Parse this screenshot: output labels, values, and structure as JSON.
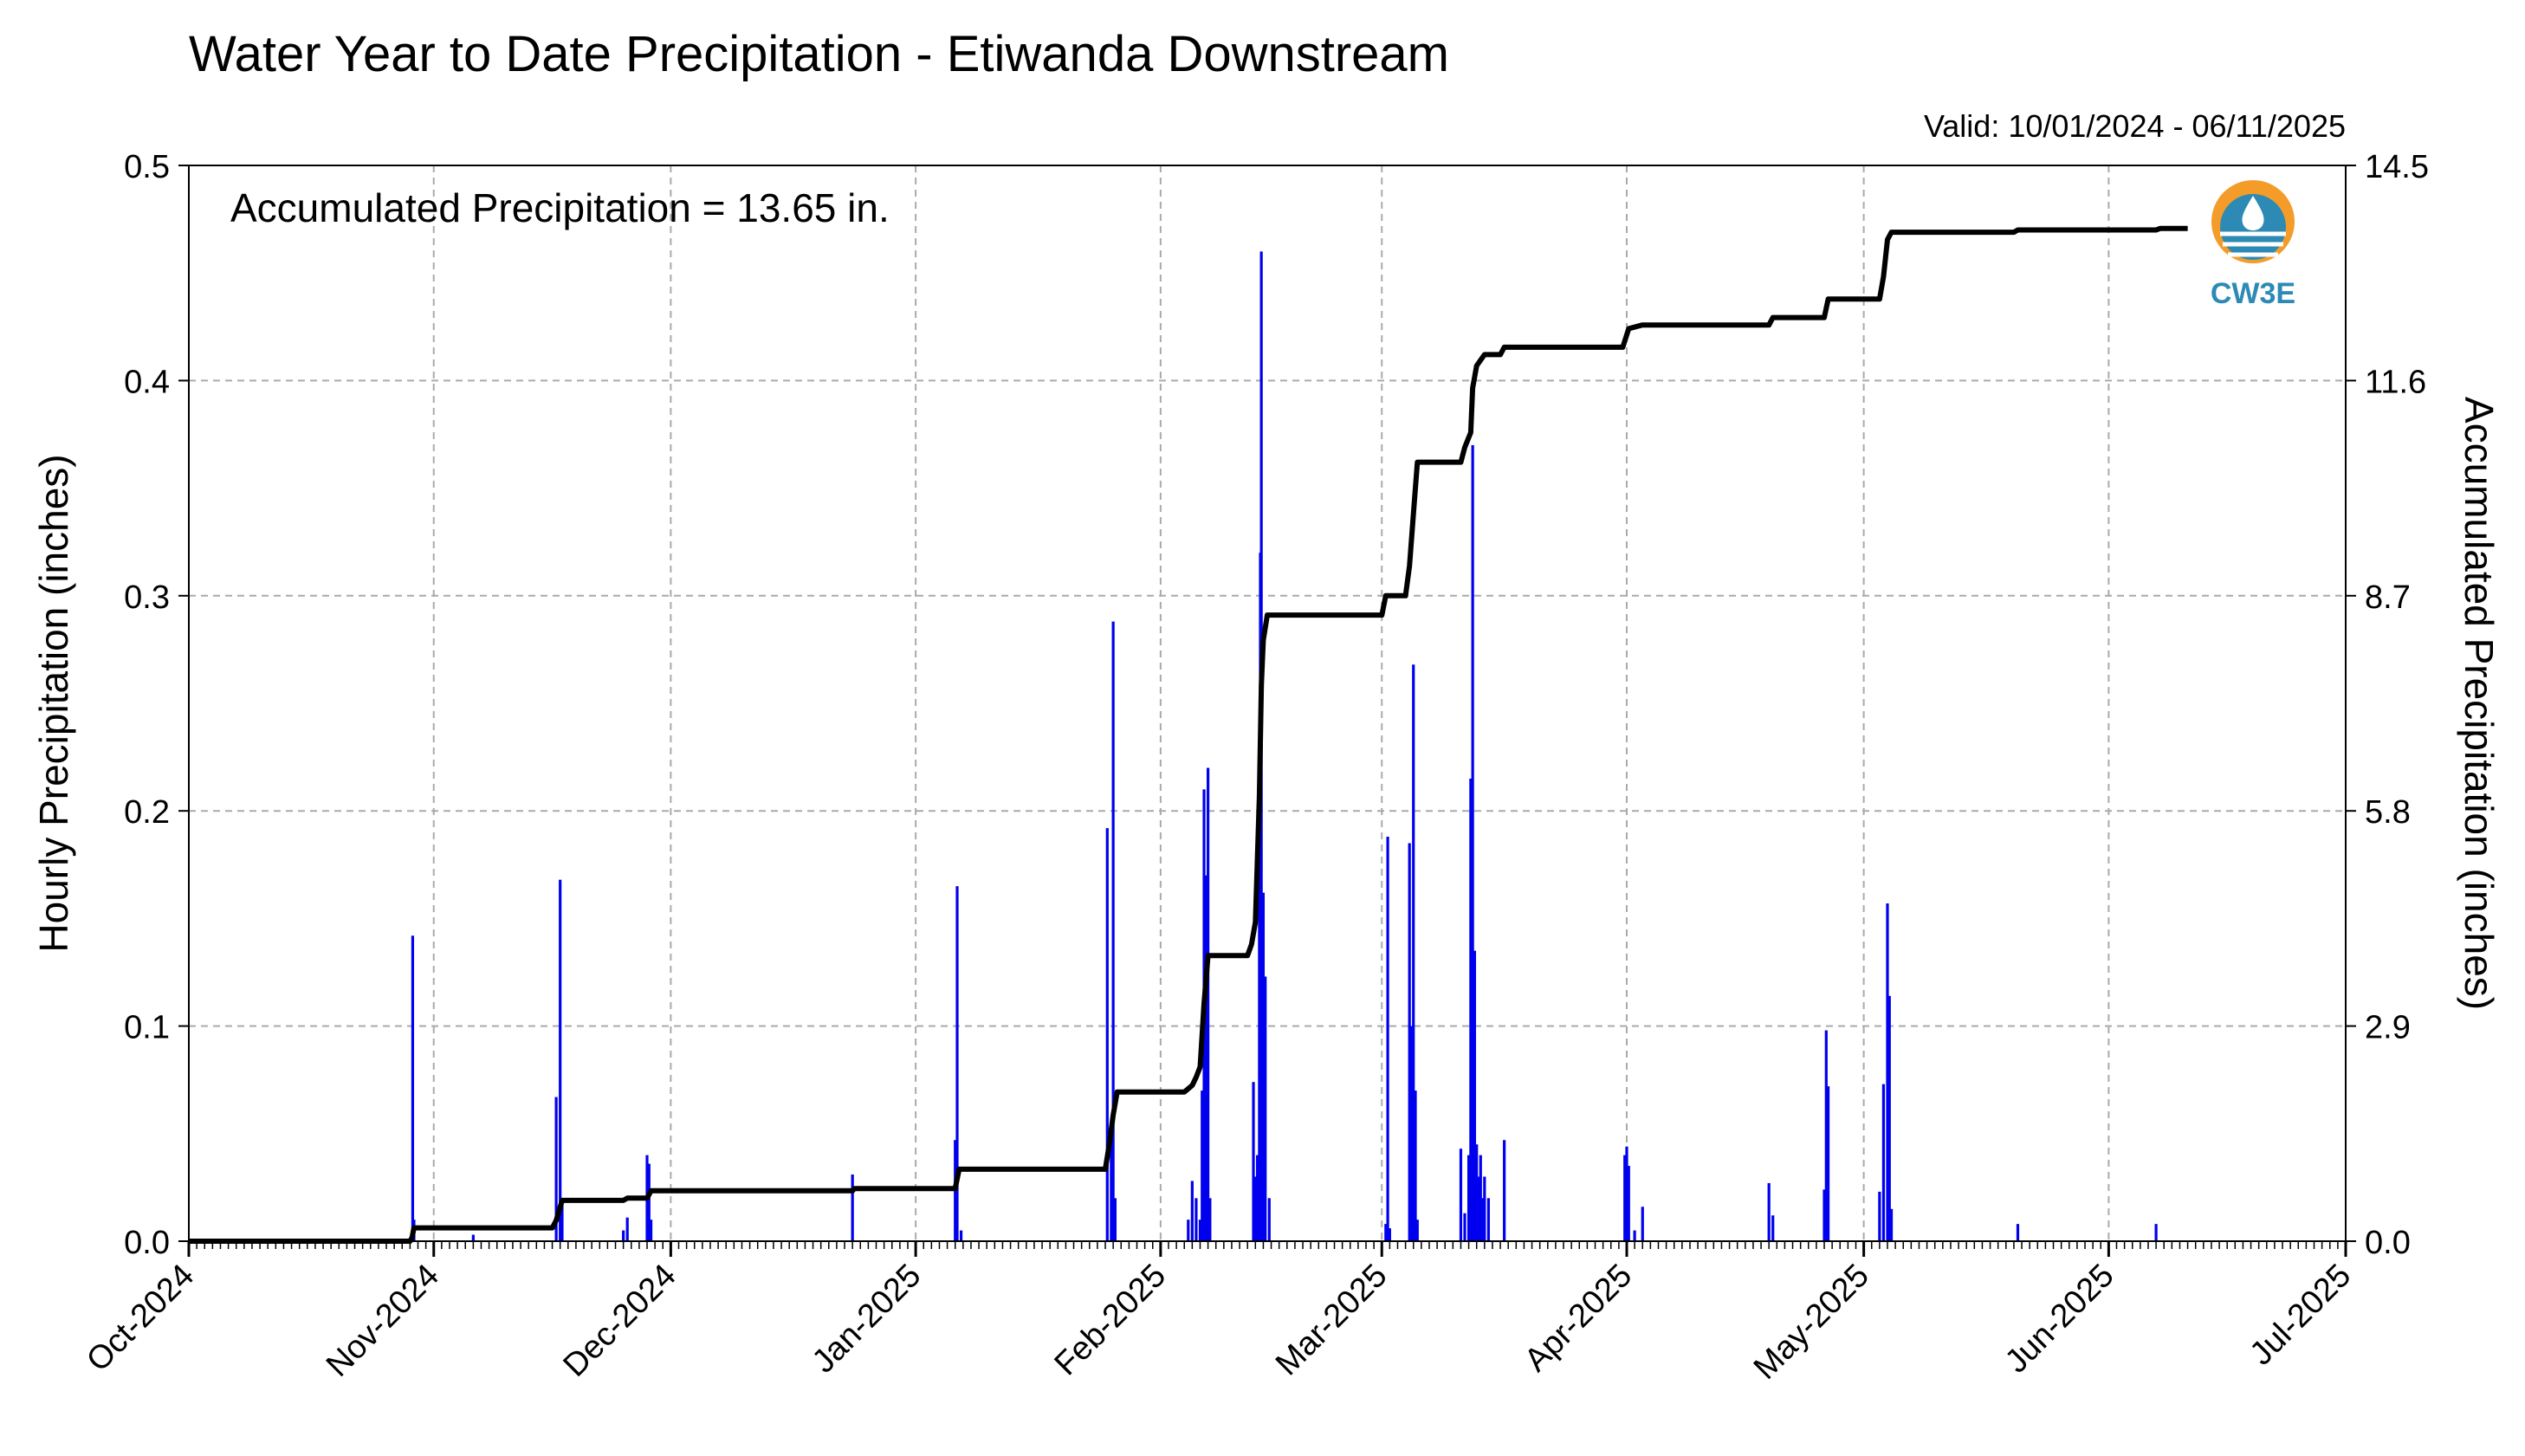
{
  "chart_data": {
    "type": "bar",
    "title": "Water Year to Date Precipitation - Etiwanda Downstream",
    "valid_text": "Valid: 10/01/2024 - 06/11/2025",
    "annotation": "Accumulated Precipitation = 13.65 in.",
    "ylabel_left": "Hourly Precipitation (inches)",
    "ylabel_right": "Accumulated Precipitation (inches)",
    "ylim_left": [
      0,
      0.5
    ],
    "ylim_right": [
      0,
      14.5
    ],
    "yticks_left": [
      "0.0",
      "0.1",
      "0.2",
      "0.3",
      "0.4",
      "0.5"
    ],
    "yticks_right": [
      "0.0",
      "2.9",
      "5.8",
      "8.7",
      "11.6",
      "14.5"
    ],
    "xlim": [
      "2024-10-01",
      "2025-07-01"
    ],
    "xtick_labels": [
      "Oct-2024",
      "Nov-2024",
      "Dec-2024",
      "Jan-2025",
      "Feb-2025",
      "Mar-2025",
      "Apr-2025",
      "May-2025",
      "Jun-2025",
      "Jul-2025"
    ],
    "xtick_dates": [
      "2024-10-01",
      "2024-11-01",
      "2024-12-01",
      "2025-01-01",
      "2025-02-01",
      "2025-03-01",
      "2025-04-01",
      "2025-05-01",
      "2025-06-01",
      "2025-07-01"
    ],
    "grid": true,
    "colors": {
      "hourly": "#0000ee",
      "accumulated": "#000000",
      "left_label": "#0000ee",
      "grid": "#aaaaaa",
      "logo_orange": "#f39c2a",
      "logo_blue": "#2d8ab5"
    },
    "logo_text": "CW3E",
    "series": [
      {
        "name": "Hourly Precipitation",
        "type": "bar",
        "axis": "left",
        "points": [
          [
            "2024-10-29 08:00",
            0.142
          ],
          [
            "2024-10-29 12:00",
            0.01
          ],
          [
            "2024-11-06 00:00",
            0.003
          ],
          [
            "2024-11-16 12:00",
            0.067
          ],
          [
            "2024-11-17 00:00",
            0.168
          ],
          [
            "2024-11-17 06:00",
            0.02
          ],
          [
            "2024-11-25 00:00",
            0.005
          ],
          [
            "2024-11-25 12:00",
            0.011
          ],
          [
            "2024-11-28 00:00",
            0.04
          ],
          [
            "2024-11-28 06:00",
            0.036
          ],
          [
            "2024-11-28 12:00",
            0.01
          ],
          [
            "2024-12-24 00:00",
            0.031
          ],
          [
            "2025-01-06 00:00",
            0.047
          ],
          [
            "2025-01-06 06:00",
            0.165
          ],
          [
            "2025-01-06 18:00",
            0.005
          ],
          [
            "2025-01-25 06:00",
            0.192
          ],
          [
            "2025-01-25 18:00",
            0.055
          ],
          [
            "2025-01-26 00:00",
            0.288
          ],
          [
            "2025-01-26 06:00",
            0.02
          ],
          [
            "2025-02-04 12:00",
            0.01
          ],
          [
            "2025-02-05 00:00",
            0.028
          ],
          [
            "2025-02-05 12:00",
            0.02
          ],
          [
            "2025-02-06 00:00",
            0.01
          ],
          [
            "2025-02-06 06:00",
            0.07
          ],
          [
            "2025-02-06 12:00",
            0.21
          ],
          [
            "2025-02-06 18:00",
            0.17
          ],
          [
            "2025-02-07 00:00",
            0.22
          ],
          [
            "2025-02-07 06:00",
            0.02
          ],
          [
            "2025-02-12 18:00",
            0.074
          ],
          [
            "2025-02-13 00:00",
            0.03
          ],
          [
            "2025-02-13 06:00",
            0.04
          ],
          [
            "2025-02-13 12:00",
            0.21
          ],
          [
            "2025-02-13 15:00",
            0.32
          ],
          [
            "2025-02-13 18:00",
            0.46
          ],
          [
            "2025-02-14 00:00",
            0.162
          ],
          [
            "2025-02-14 06:00",
            0.123
          ],
          [
            "2025-02-14 18:00",
            0.02
          ],
          [
            "2025-03-01 12:00",
            0.008
          ],
          [
            "2025-03-01 18:00",
            0.188
          ],
          [
            "2025-03-02 00:00",
            0.006
          ],
          [
            "2025-03-04 12:00",
            0.185
          ],
          [
            "2025-03-04 18:00",
            0.1
          ],
          [
            "2025-03-05 00:00",
            0.268
          ],
          [
            "2025-03-05 06:00",
            0.07
          ],
          [
            "2025-03-05 12:00",
            0.01
          ],
          [
            "2025-03-11 00:00",
            0.043
          ],
          [
            "2025-03-11 12:00",
            0.013
          ],
          [
            "2025-03-12 00:00",
            0.04
          ],
          [
            "2025-03-12 06:00",
            0.215
          ],
          [
            "2025-03-12 12:00",
            0.37
          ],
          [
            "2025-03-12 18:00",
            0.135
          ],
          [
            "2025-03-13 00:00",
            0.045
          ],
          [
            "2025-03-13 06:00",
            0.03
          ],
          [
            "2025-03-13 12:00",
            0.04
          ],
          [
            "2025-03-13 18:00",
            0.02
          ],
          [
            "2025-03-14 00:00",
            0.03
          ],
          [
            "2025-03-14 12:00",
            0.02
          ],
          [
            "2025-03-16 12:00",
            0.047
          ],
          [
            "2025-03-31 18:00",
            0.04
          ],
          [
            "2025-04-01 00:00",
            0.044
          ],
          [
            "2025-04-01 06:00",
            0.035
          ],
          [
            "2025-04-02 00:00",
            0.005
          ],
          [
            "2025-04-03 00:00",
            0.016
          ],
          [
            "2025-04-19 00:00",
            0.027
          ],
          [
            "2025-04-19 12:00",
            0.012
          ],
          [
            "2025-04-26 00:00",
            0.024
          ],
          [
            "2025-04-26 06:00",
            0.098
          ],
          [
            "2025-04-26 12:00",
            0.072
          ],
          [
            "2025-05-03 00:00",
            0.023
          ],
          [
            "2025-05-03 12:00",
            0.073
          ],
          [
            "2025-05-04 00:00",
            0.157
          ],
          [
            "2025-05-04 06:00",
            0.114
          ],
          [
            "2025-05-04 12:00",
            0.015
          ],
          [
            "2025-05-20 12:00",
            0.008
          ],
          [
            "2025-06-07 00:00",
            0.008
          ]
        ]
      },
      {
        "name": "Accumulated Precipitation",
        "type": "line",
        "axis": "right",
        "points": [
          [
            "2024-10-01 00:00",
            0.0
          ],
          [
            "2024-10-29 00:00",
            0.0
          ],
          [
            "2024-10-29 06:00",
            0.05
          ],
          [
            "2024-10-29 12:00",
            0.18
          ],
          [
            "2024-11-16 00:00",
            0.18
          ],
          [
            "2024-11-16 12:00",
            0.28
          ],
          [
            "2024-11-17 06:00",
            0.55
          ],
          [
            "2024-11-25 00:00",
            0.55
          ],
          [
            "2024-11-25 12:00",
            0.58
          ],
          [
            "2024-11-28 00:00",
            0.58
          ],
          [
            "2024-11-28 12:00",
            0.68
          ],
          [
            "2024-12-24 00:00",
            0.68
          ],
          [
            "2024-12-24 06:00",
            0.71
          ],
          [
            "2025-01-06 00:00",
            0.71
          ],
          [
            "2025-01-06 12:00",
            0.97
          ],
          [
            "2025-01-25 00:00",
            0.97
          ],
          [
            "2025-01-25 12:00",
            1.3
          ],
          [
            "2025-01-26 00:00",
            1.7
          ],
          [
            "2025-01-26 12:00",
            2.01
          ],
          [
            "2025-02-04 00:00",
            2.01
          ],
          [
            "2025-02-05 00:00",
            2.1
          ],
          [
            "2025-02-05 12:00",
            2.21
          ],
          [
            "2025-02-06 00:00",
            2.35
          ],
          [
            "2025-02-06 12:00",
            3.2
          ],
          [
            "2025-02-07 00:00",
            3.85
          ],
          [
            "2025-02-12 00:00",
            3.85
          ],
          [
            "2025-02-12 12:00",
            4.0
          ],
          [
            "2025-02-13 00:00",
            4.3
          ],
          [
            "2025-02-13 12:00",
            6.0
          ],
          [
            "2025-02-13 18:00",
            7.5
          ],
          [
            "2025-02-14 00:00",
            8.1
          ],
          [
            "2025-02-14 12:00",
            8.44
          ],
          [
            "2025-03-01 00:00",
            8.44
          ],
          [
            "2025-03-01 12:00",
            8.7
          ],
          [
            "2025-03-04 00:00",
            8.7
          ],
          [
            "2025-03-04 12:00",
            9.1
          ],
          [
            "2025-03-05 00:00",
            9.8
          ],
          [
            "2025-03-05 12:00",
            10.5
          ],
          [
            "2025-03-11 00:00",
            10.5
          ],
          [
            "2025-03-11 12:00",
            10.7
          ],
          [
            "2025-03-12 06:00",
            10.9
          ],
          [
            "2025-03-12 12:00",
            11.5
          ],
          [
            "2025-03-13 00:00",
            11.8
          ],
          [
            "2025-03-14 00:00",
            11.95
          ],
          [
            "2025-03-16 00:00",
            11.95
          ],
          [
            "2025-03-16 12:00",
            12.05
          ],
          [
            "2025-03-31 12:00",
            12.05
          ],
          [
            "2025-04-01 06:00",
            12.3
          ],
          [
            "2025-04-03 00:00",
            12.35
          ],
          [
            "2025-04-19 00:00",
            12.35
          ],
          [
            "2025-04-19 12:00",
            12.45
          ],
          [
            "2025-04-26 00:00",
            12.45
          ],
          [
            "2025-04-26 12:00",
            12.7
          ],
          [
            "2025-05-03 00:00",
            12.7
          ],
          [
            "2025-05-03 12:00",
            13.0
          ],
          [
            "2025-05-04 00:00",
            13.5
          ],
          [
            "2025-05-04 12:00",
            13.6
          ],
          [
            "2025-05-20 00:00",
            13.6
          ],
          [
            "2025-05-20 12:00",
            13.63
          ],
          [
            "2025-06-07 00:00",
            13.63
          ],
          [
            "2025-06-07 12:00",
            13.65
          ],
          [
            "2025-06-11 00:00",
            13.65
          ]
        ]
      }
    ]
  }
}
